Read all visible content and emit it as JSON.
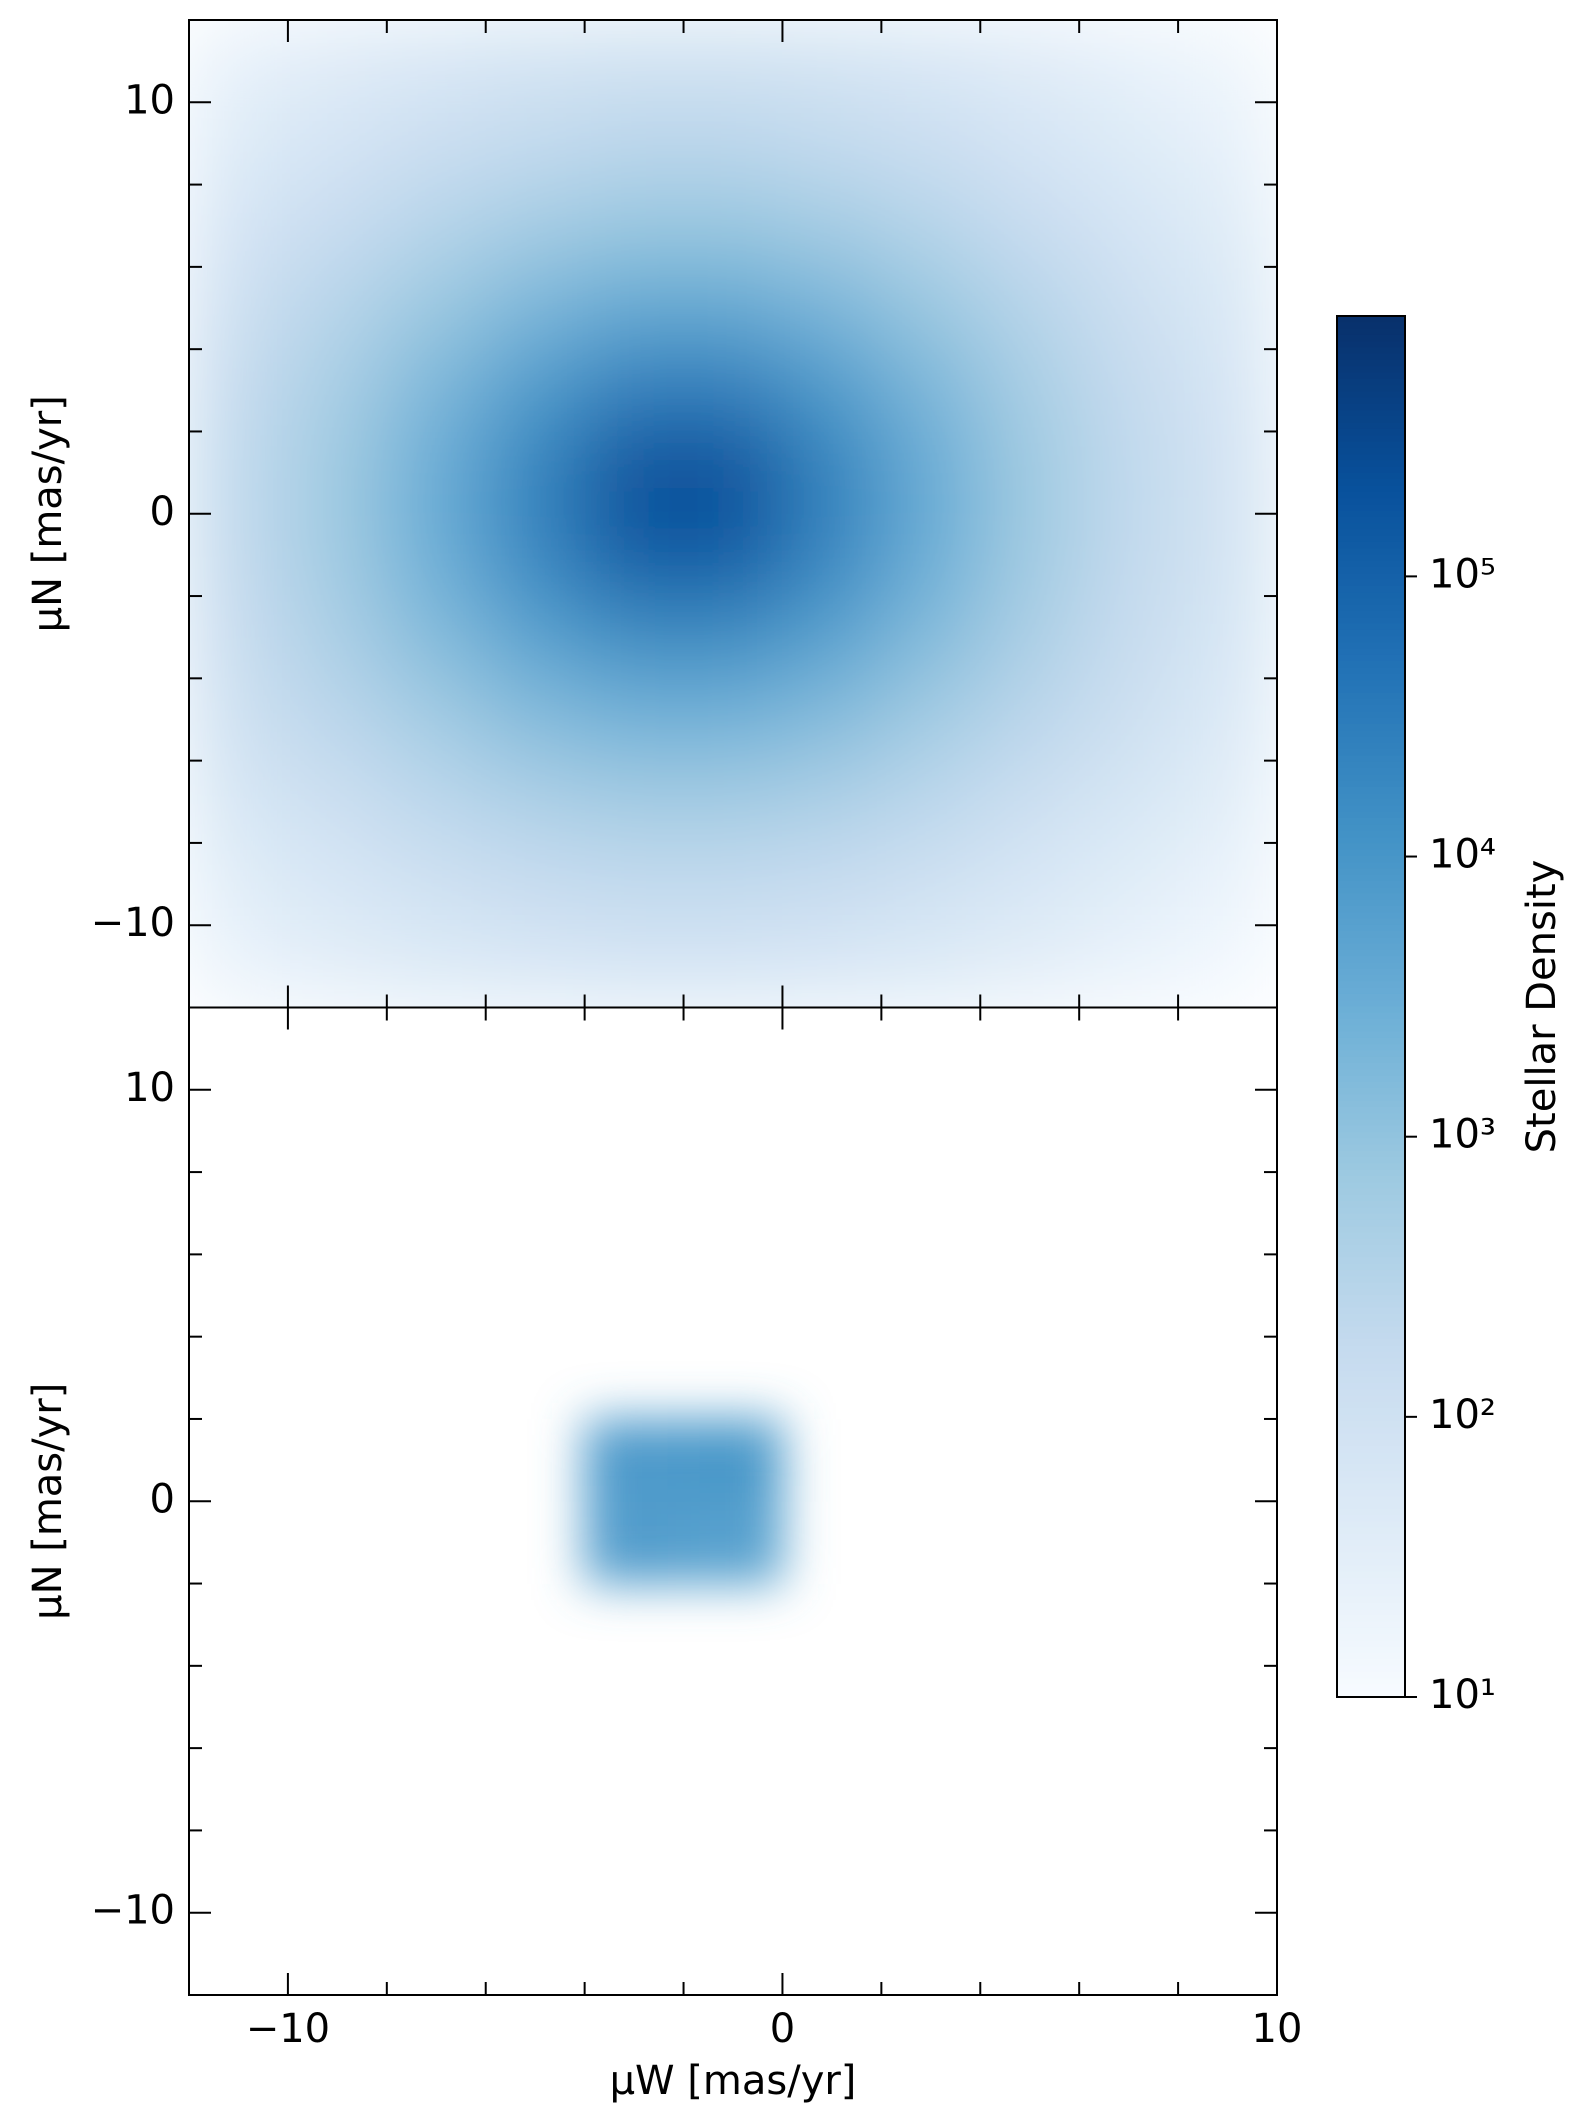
{
  "chart_data": [
    {
      "type": "heatmap",
      "x": [
        -11,
        -9,
        -7,
        -5,
        -3,
        -1,
        1,
        3,
        5,
        7,
        9
      ],
      "y": [
        -11,
        -9,
        -7,
        -5,
        -3,
        -1,
        1,
        3,
        5,
        7,
        9,
        11
      ],
      "z": [
        [
          21,
          32,
          46,
          60,
          71,
          71,
          60,
          46,
          32,
          21,
          13
        ],
        [
          36,
          63,
          100,
          150,
          190,
          190,
          150,
          100,
          63,
          36,
          21
        ],
        [
          65,
          120,
          240,
          420,
          580,
          580,
          420,
          240,
          120,
          65,
          33
        ],
        [
          110,
          250,
          590,
          1400,
          2400,
          2400,
          1400,
          590,
          250,
          110,
          50
        ],
        [
          160,
          450,
          1500,
          5400,
          15000,
          15000,
          5400,
          1500,
          450,
          160,
          66
        ],
        [
          200,
          660,
          2900,
          19000,
          130000,
          130000,
          19000,
          2900,
          660,
          200,
          78
        ],
        [
          210,
          690,
          3200,
          23000,
          220000,
          220000,
          23000,
          3200,
          690,
          210,
          81
        ],
        [
          180,
          520,
          1900,
          8100,
          30000,
          30000,
          8100,
          1900,
          520,
          180,
          71
        ],
        [
          120,
          300,
          790,
          2000,
          4000,
          4000,
          2000,
          790,
          300,
          120,
          55
        ],
        [
          74,
          150,
          310,
          580,
          830,
          830,
          580,
          310,
          150,
          74,
          38
        ],
        [
          43,
          76,
          130,
          190,
          250,
          250,
          190,
          130,
          76,
          43,
          25
        ],
        [
          25,
          40,
          58,
          78,
          93,
          93,
          78,
          58,
          40,
          25,
          16
        ]
      ],
      "ylim": [
        -12,
        12
      ],
      "yticks": [
        {
          "value": -10,
          "label": "−10"
        },
        0,
        10
      ],
      "yminor": [
        -8,
        -6,
        -4,
        -2,
        2,
        4,
        6,
        8
      ],
      "ylabel": "μN [mas/yr]",
      "colormap": [
        "#f7fbff",
        "#deebf7",
        "#c6dbef",
        "#9ecae1",
        "#6baed6",
        "#4292c6",
        "#2171b5",
        "#08519c",
        "#08306b"
      ],
      "colorbar": {
        "label": "Stellar Density",
        "lim": [
          10,
          850000
        ],
        "log": true,
        "ticks": [
          {
            "value": 10,
            "label": "10¹"
          },
          {
            "value": 100,
            "label": "10²"
          },
          {
            "value": 1000,
            "label": "10³"
          },
          {
            "value": 10000,
            "label": "10⁴"
          },
          {
            "value": 100000,
            "label": "10⁵"
          }
        ]
      }
    },
    {
      "type": "heatmap",
      "x": [
        -11,
        -9,
        -7,
        -5,
        -3,
        -1,
        1,
        3,
        5,
        7,
        9
      ],
      "y": [
        -11,
        -9,
        -7,
        -5,
        -3,
        -1,
        1,
        3,
        5,
        7,
        9,
        11
      ],
      "z": [
        [
          null,
          null,
          null,
          null,
          null,
          null,
          null,
          null,
          null,
          null,
          null
        ],
        [
          null,
          null,
          null,
          null,
          null,
          null,
          null,
          null,
          null,
          null,
          null
        ],
        [
          null,
          null,
          null,
          null,
          null,
          null,
          null,
          null,
          null,
          null,
          null
        ],
        [
          null,
          null,
          null,
          null,
          null,
          null,
          null,
          null,
          null,
          null,
          null
        ],
        [
          null,
          null,
          null,
          null,
          null,
          null,
          null,
          null,
          null,
          null,
          null
        ],
        [
          null,
          null,
          null,
          null,
          7000,
          6000,
          null,
          null,
          null,
          null,
          null
        ],
        [
          null,
          null,
          null,
          null,
          8000,
          9000,
          null,
          null,
          null,
          null,
          null
        ],
        [
          null,
          null,
          null,
          null,
          null,
          null,
          null,
          null,
          null,
          null,
          null
        ],
        [
          null,
          null,
          null,
          null,
          null,
          null,
          null,
          null,
          null,
          null,
          null
        ],
        [
          null,
          null,
          null,
          null,
          null,
          null,
          null,
          null,
          null,
          null,
          null
        ],
        [
          null,
          null,
          null,
          null,
          null,
          null,
          null,
          null,
          null,
          null,
          null
        ],
        [
          null,
          null,
          null,
          null,
          null,
          null,
          null,
          null,
          null,
          null,
          null
        ]
      ],
      "xlim": [
        -12,
        10
      ],
      "ylim": [
        -12,
        12
      ],
      "xticks": [
        {
          "value": -10,
          "label": "−10"
        },
        0,
        10
      ],
      "xminor": [
        -8,
        -6,
        -4,
        -2,
        2,
        4,
        6,
        8
      ],
      "yticks": [
        {
          "value": -10,
          "label": "−10"
        },
        0,
        10
      ],
      "yminor": [
        -8,
        -6,
        -4,
        -2,
        2,
        4,
        6,
        8
      ],
      "xlabel": "μW [mas/yr]",
      "ylabel": "μN [mas/yr]"
    }
  ]
}
